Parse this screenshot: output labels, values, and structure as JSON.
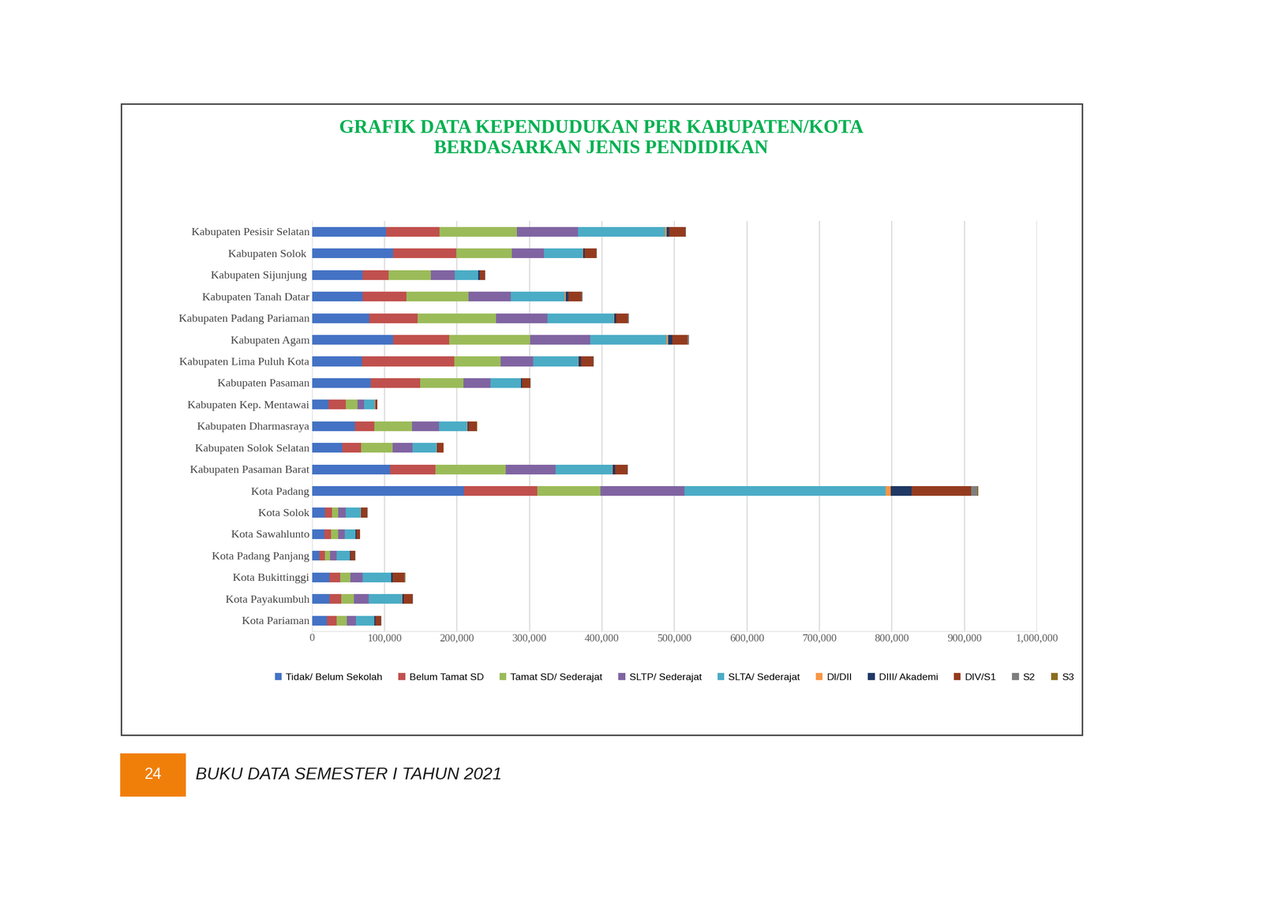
{
  "chart_data": {
    "type": "bar",
    "orientation": "horizontal",
    "stacked": true,
    "grid": true,
    "legend": "bottom",
    "title": "GRAFIK DATA KEPENDUDUKAN PER KABUPATEN/KOTA\nBERDASARKAN JENIS PENDIDIKAN",
    "annotations": [
      "24",
      "BUKU DATA SEMESTER I TAHUN 2021"
    ],
    "categories": [
      "Kabupaten Pesisir Selatan",
      "Kabupaten Solok ",
      "Kabupaten Sijunjung ",
      "Kabupaten Tanah Datar",
      "Kabupaten Padang Pariaman",
      "Kabupaten Agam",
      "Kabupaten Lima Puluh Kota",
      "Kabupaten Pasaman",
      "Kabupaten Kep. Mentawai",
      "Kabupaten Dharmasraya",
      "Kabupaten Solok Selatan",
      "Kabupaten Pasaman Barat",
      "Kota Padang",
      "Kota Solok",
      "Kota Sawahlunto",
      "Kota Padang Panjang",
      "Kota Bukittinggi",
      "Kota Payakumbuh",
      "Kota Pariaman"
    ],
    "series": [
      {
        "name": "Tidak/ Belum Sekolah",
        "color": "#4472C4",
        "values": [
          102000,
          112000,
          70000,
          70000,
          79000,
          112000,
          69000,
          81000,
          23000,
          59000,
          42000,
          108000,
          210000,
          18000,
          17000,
          10000,
          24000,
          24000,
          21000
        ]
      },
      {
        "name": "Belum Tamat SD",
        "color": "#C0504D",
        "values": [
          74000,
          87000,
          36000,
          60000,
          67000,
          77000,
          127000,
          68000,
          24000,
          27000,
          26000,
          62000,
          101000,
          10000,
          9000,
          8000,
          15000,
          16000,
          13000
        ]
      },
      {
        "name": "Tamat SD/ Sederajat",
        "color": "#9BBB59",
        "values": [
          107000,
          77000,
          58000,
          86000,
          108000,
          112000,
          64000,
          60000,
          16000,
          52000,
          43000,
          97000,
          87000,
          8000,
          10000,
          7000,
          14000,
          18000,
          14000
        ]
      },
      {
        "name": "SLTP/ Sederajat",
        "color": "#8064A2",
        "values": [
          84000,
          44000,
          33000,
          58000,
          71000,
          83000,
          45000,
          37000,
          9000,
          37000,
          28000,
          69000,
          116000,
          11000,
          9000,
          9000,
          17000,
          20000,
          13000
        ]
      },
      {
        "name": "SLTA/ Sederajat",
        "color": "#4BACC6",
        "values": [
          120000,
          53000,
          32000,
          75000,
          91000,
          105000,
          62000,
          42000,
          15000,
          39000,
          33000,
          78000,
          277000,
          20000,
          15000,
          18000,
          39000,
          46000,
          25000
        ]
      },
      {
        "name": "DI/DII",
        "color": "#F79646",
        "values": [
          2000,
          1000,
          500,
          1000,
          1000,
          2000,
          1000,
          500,
          200,
          500,
          300,
          1000,
          7000,
          500,
          300,
          300,
          500,
          500,
          300
        ]
      },
      {
        "name": "DIII/ Akademi",
        "color": "#1F3864",
        "values": [
          4000,
          2000,
          2000,
          4000,
          3000,
          6000,
          3000,
          1500,
          500,
          1500,
          1000,
          3000,
          29000,
          1000,
          1000,
          1000,
          2000,
          2000,
          1000
        ]
      },
      {
        "name": "DIV/S1",
        "color": "#943B1F",
        "values": [
          22000,
          16000,
          7000,
          18000,
          16000,
          21000,
          17000,
          11000,
          2500,
          11000,
          8000,
          17000,
          82000,
          8000,
          5000,
          6000,
          16000,
          12000,
          8000
        ]
      },
      {
        "name": "S2",
        "color": "#7F7F7F",
        "values": [
          1000,
          1000,
          500,
          1000,
          1000,
          2000,
          1000,
          500,
          200,
          500,
          300,
          1000,
          9000,
          500,
          300,
          500,
          1000,
          1000,
          500
        ]
      },
      {
        "name": "S3",
        "color": "#8C6D1F",
        "values": [
          200,
          200,
          100,
          100,
          100,
          300,
          100,
          100,
          50,
          100,
          50,
          100,
          1000,
          50,
          50,
          50,
          200,
          100,
          50
        ]
      }
    ],
    "xlim": [
      0,
      1000000
    ],
    "xticks": [
      0,
      {
        "value": 100000,
        "label": "100,000"
      },
      {
        "value": 200000,
        "label": "200,000"
      },
      {
        "value": 300000,
        "label": "300,000"
      },
      {
        "value": 400000,
        "label": "400,000"
      },
      {
        "value": 500000,
        "label": "500,000"
      },
      {
        "value": 600000,
        "label": "600,000"
      },
      {
        "value": 700000,
        "label": "700,000"
      },
      {
        "value": 800000,
        "label": "800,000"
      },
      {
        "value": 900000,
        "label": "900,000"
      },
      {
        "value": 1000000,
        "label": "1,000,000"
      }
    ]
  }
}
